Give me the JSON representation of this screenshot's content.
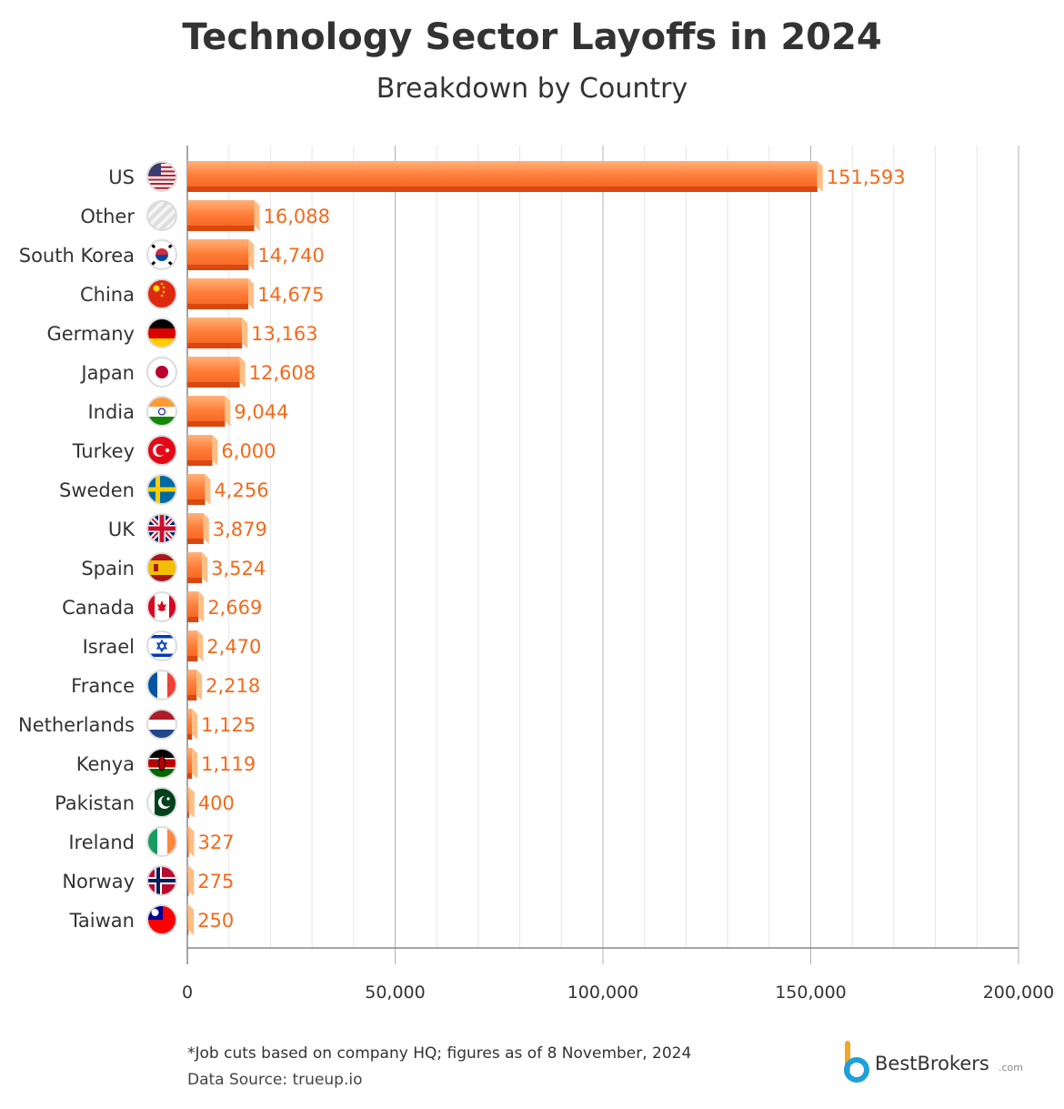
{
  "chart_data": {
    "type": "bar",
    "orientation": "horizontal",
    "title": "Technology Sector Layoffs in 2024",
    "subtitle": "Breakdown by Country",
    "categories": [
      "US",
      "Other",
      "South Korea",
      "China",
      "Germany",
      "Japan",
      "India",
      "Turkey",
      "Sweden",
      "UK",
      "Spain",
      "Canada",
      "Israel",
      "France",
      "Netherlands",
      "Kenya",
      "Pakistan",
      "Ireland",
      "Norway",
      "Taiwan"
    ],
    "values": [
      151593,
      16088,
      14740,
      14675,
      13163,
      12608,
      9044,
      6000,
      4256,
      3879,
      3524,
      2669,
      2470,
      2218,
      1125,
      1119,
      400,
      327,
      275,
      250
    ],
    "value_labels": [
      "151,593",
      "16,088",
      "14,740",
      "14,675",
      "13,163",
      "12,608",
      "9,044",
      "6,000",
      "4,256",
      "3,879",
      "3,524",
      "2,669",
      "2,470",
      "2,218",
      "1,125",
      "1,119",
      "400",
      "327",
      "275",
      "250"
    ],
    "xlim": [
      0,
      200000
    ],
    "x_ticks": [
      0,
      50000,
      100000,
      150000,
      200000
    ],
    "x_tick_labels": [
      "0",
      "50,000",
      "100,000",
      "150,000",
      "200,000"
    ],
    "grid": true,
    "bar_color": "#FF7A33",
    "label_color": "#F26A1B",
    "flags": [
      "us-flag-icon",
      "other-striped-icon",
      "south-korea-flag-icon",
      "china-flag-icon",
      "germany-flag-icon",
      "japan-flag-icon",
      "india-flag-icon",
      "turkey-flag-icon",
      "sweden-flag-icon",
      "uk-flag-icon",
      "spain-flag-icon",
      "canada-flag-icon",
      "israel-flag-icon",
      "france-flag-icon",
      "netherlands-flag-icon",
      "kenya-flag-icon",
      "pakistan-flag-icon",
      "ireland-flag-icon",
      "norway-flag-icon",
      "taiwan-flag-icon"
    ]
  },
  "footnote": "*Job cuts based on company HQ; figures as of 8 November, 2024",
  "source": "Data Source: trueup.io",
  "brand": {
    "name": "BestBrokers",
    "suffix": ".com",
    "colors": [
      "#F5A623",
      "#1FA0D9"
    ]
  }
}
